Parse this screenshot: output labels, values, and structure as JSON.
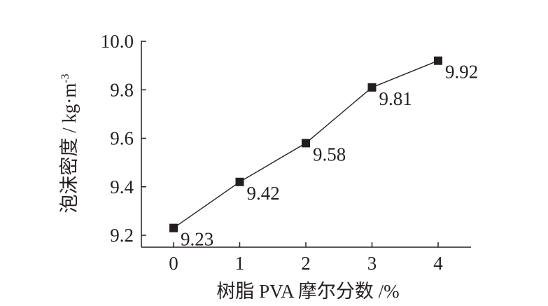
{
  "chart_data": {
    "type": "line",
    "x": [
      0,
      1,
      2,
      3,
      4
    ],
    "values": [
      9.23,
      9.42,
      9.58,
      9.81,
      9.92
    ],
    "data_labels": [
      "9.23",
      "9.42",
      "9.58",
      "9.81",
      "9.92"
    ],
    "xlabel": "树脂 PVA 摩尔分数 /%",
    "ylabel": "泡沫密度 / kg·m",
    "ylabel_superscript": "-3",
    "xticks": [
      "0",
      "1",
      "2",
      "3",
      "4"
    ],
    "yticks": [
      "9.2",
      "9.4",
      "9.6",
      "9.8",
      "10.0"
    ],
    "ytick_values": [
      9.2,
      9.4,
      9.6,
      9.8,
      10.0
    ],
    "xlim": [
      -0.5,
      4.5
    ],
    "ylim": [
      9.17,
      10.0
    ],
    "grid": false,
    "marker": "square",
    "colors": {
      "line": "#231f20",
      "marker": "#231f20",
      "text": "#231f20"
    }
  }
}
